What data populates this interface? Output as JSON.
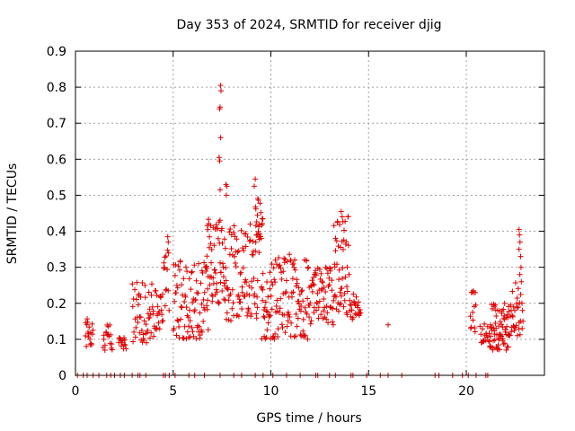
{
  "chart_data": {
    "type": "scatter",
    "title": "Day 353 of 2024, SRMTID for receiver djig",
    "xlabel": "GPS time / hours",
    "ylabel": "SRMTID / TECUs",
    "xlim": [
      0,
      24
    ],
    "ylim": [
      0,
      0.9
    ],
    "xticks": [
      0,
      5,
      10,
      15,
      20
    ],
    "yticks": [
      0,
      0.1,
      0.2,
      0.3,
      0.4,
      0.5,
      0.6,
      0.7,
      0.8,
      0.9
    ],
    "grid": true,
    "marker": "+",
    "color": "#e00000",
    "series": [
      {
        "name": "SRMTID",
        "clusters": [
          {
            "x0": 0.5,
            "x1": 0.9,
            "lo": 0.08,
            "hi": 0.16,
            "n": 18
          },
          {
            "x0": 1.4,
            "x1": 1.9,
            "lo": 0.06,
            "hi": 0.14,
            "n": 18
          },
          {
            "x0": 2.2,
            "x1": 2.6,
            "lo": 0.07,
            "hi": 0.11,
            "n": 14
          },
          {
            "x0": 2.9,
            "x1": 4.5,
            "lo": 0.09,
            "hi": 0.26,
            "n": 70
          },
          {
            "x0": 4.5,
            "x1": 4.8,
            "lo": 0.18,
            "hi": 0.39,
            "n": 14
          },
          {
            "x0": 5.0,
            "x1": 6.8,
            "lo": 0.1,
            "hi": 0.32,
            "n": 90
          },
          {
            "x0": 6.7,
            "x1": 7.7,
            "lo": 0.2,
            "hi": 0.44,
            "n": 60
          },
          {
            "x0": 7.7,
            "x1": 9.4,
            "lo": 0.15,
            "hi": 0.42,
            "n": 90
          },
          {
            "x0": 9.2,
            "x1": 9.6,
            "lo": 0.35,
            "hi": 0.54,
            "n": 20
          },
          {
            "x0": 9.5,
            "x1": 12.0,
            "lo": 0.1,
            "hi": 0.34,
            "n": 130
          },
          {
            "x0": 12.0,
            "x1": 13.2,
            "lo": 0.14,
            "hi": 0.3,
            "n": 60
          },
          {
            "x0": 13.2,
            "x1": 14.0,
            "lo": 0.16,
            "hi": 0.45,
            "n": 50
          },
          {
            "x0": 14.0,
            "x1": 14.6,
            "lo": 0.15,
            "hi": 0.23,
            "n": 26
          },
          {
            "x0": 20.2,
            "x1": 20.5,
            "lo": 0.11,
            "hi": 0.24,
            "n": 14
          },
          {
            "x0": 20.7,
            "x1": 21.2,
            "lo": 0.09,
            "hi": 0.15,
            "n": 18
          },
          {
            "x0": 21.2,
            "x1": 22.2,
            "lo": 0.07,
            "hi": 0.2,
            "n": 70
          },
          {
            "x0": 22.2,
            "x1": 22.8,
            "lo": 0.1,
            "hi": 0.26,
            "n": 30
          }
        ],
        "points": [
          [
            7.42,
            0.805
          ],
          [
            7.45,
            0.79
          ],
          [
            7.4,
            0.745
          ],
          [
            7.38,
            0.74
          ],
          [
            7.43,
            0.66
          ],
          [
            7.35,
            0.605
          ],
          [
            7.38,
            0.595
          ],
          [
            7.4,
            0.515
          ],
          [
            7.7,
            0.53
          ],
          [
            7.75,
            0.525
          ],
          [
            7.72,
            0.5
          ],
          [
            9.2,
            0.545
          ],
          [
            9.15,
            0.525
          ],
          [
            13.6,
            0.455
          ],
          [
            13.65,
            0.44
          ],
          [
            4.72,
            0.385
          ],
          [
            4.75,
            0.37
          ],
          [
            16.0,
            0.14
          ],
          [
            22.7,
            0.405
          ],
          [
            22.72,
            0.39
          ],
          [
            22.75,
            0.37
          ],
          [
            22.7,
            0.35
          ],
          [
            22.78,
            0.33
          ],
          [
            22.8,
            0.3
          ],
          [
            22.74,
            0.28
          ],
          [
            22.82,
            0.26
          ],
          [
            22.85,
            0.2
          ],
          [
            22.88,
            0.18
          ],
          [
            22.9,
            0.15
          ],
          [
            22.86,
            0.13
          ],
          [
            0.1,
            0
          ],
          [
            0.4,
            0
          ],
          [
            0.6,
            0
          ],
          [
            0.9,
            0
          ],
          [
            1.2,
            0
          ],
          [
            1.6,
            0
          ],
          [
            1.8,
            0
          ],
          [
            2.0,
            0
          ],
          [
            2.3,
            0
          ],
          [
            2.5,
            0
          ],
          [
            2.9,
            0
          ],
          [
            3.2,
            0
          ],
          [
            3.3,
            0
          ],
          [
            3.6,
            0
          ],
          [
            4.5,
            0
          ],
          [
            4.6,
            0
          ],
          [
            4.8,
            0
          ],
          [
            5.1,
            0
          ],
          [
            5.8,
            0
          ],
          [
            6.1,
            0
          ],
          [
            6.6,
            0
          ],
          [
            7.4,
            0
          ],
          [
            8.1,
            0
          ],
          [
            8.5,
            0
          ],
          [
            9.2,
            0
          ],
          [
            9.6,
            0
          ],
          [
            10.1,
            0
          ],
          [
            10.8,
            0
          ],
          [
            11.5,
            0
          ],
          [
            12.3,
            0
          ],
          [
            12.4,
            0
          ],
          [
            13.0,
            0
          ],
          [
            13.3,
            0
          ],
          [
            14.1,
            0
          ],
          [
            14.2,
            0
          ],
          [
            14.9,
            0
          ],
          [
            15.6,
            0
          ],
          [
            16.0,
            0
          ],
          [
            16.7,
            0
          ],
          [
            18.4,
            0
          ],
          [
            18.6,
            0
          ],
          [
            19.3,
            0
          ],
          [
            19.8,
            0
          ],
          [
            20.1,
            0
          ],
          [
            20.5,
            0
          ],
          [
            21.0,
            0
          ],
          [
            21.1,
            0
          ]
        ]
      }
    ]
  }
}
